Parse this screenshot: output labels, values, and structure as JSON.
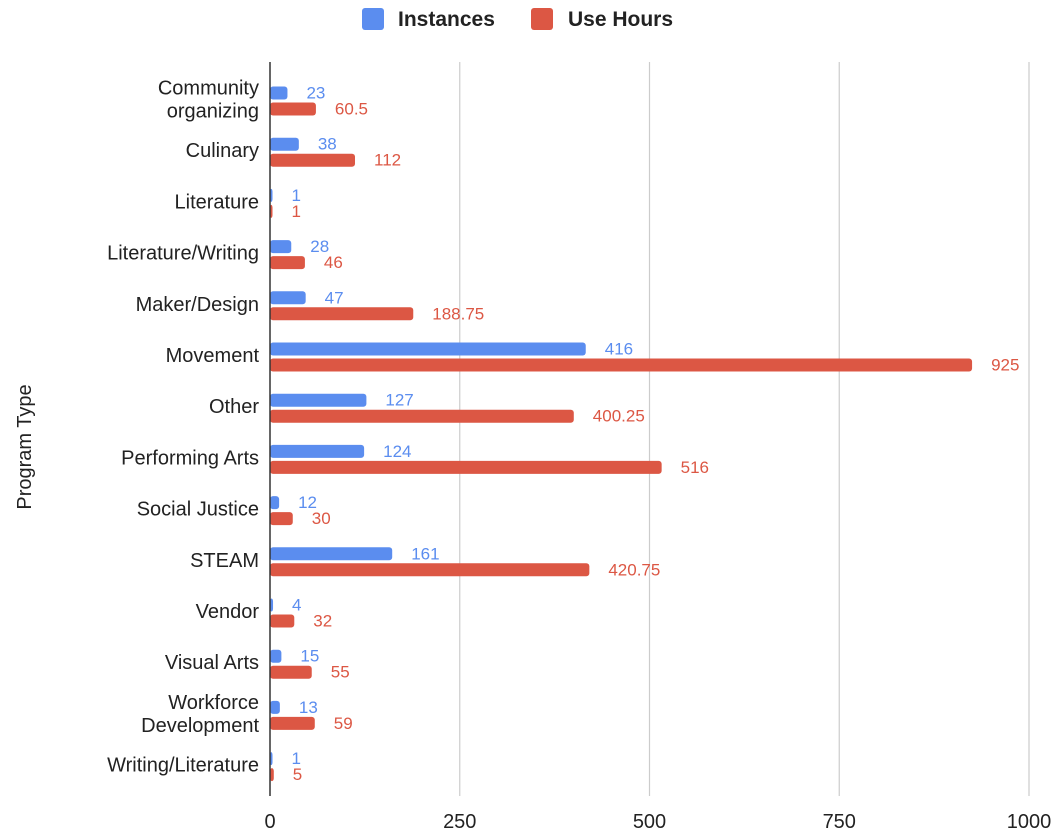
{
  "chart_data": {
    "type": "bar",
    "orientation": "horizontal",
    "title": "",
    "xlabel": "",
    "ylabel": "Program Type",
    "categories": [
      [
        "Community",
        "organizing"
      ],
      [
        "Culinary"
      ],
      [
        "Literature"
      ],
      [
        "Literature/Writing"
      ],
      [
        "Maker/Design"
      ],
      [
        "Movement"
      ],
      [
        "Other"
      ],
      [
        "Performing Arts"
      ],
      [
        "Social Justice"
      ],
      [
        "STEAM"
      ],
      [
        "Vendor"
      ],
      [
        "Visual Arts"
      ],
      [
        "Workforce",
        "Development"
      ],
      [
        "Writing/Literature"
      ]
    ],
    "series": [
      {
        "name": "Instances",
        "color": "#5b8def",
        "values": [
          23,
          38,
          1,
          28,
          47,
          416,
          127,
          124,
          12,
          161,
          4,
          15,
          13,
          1
        ],
        "labels": [
          "23",
          "38",
          "1",
          "28",
          "47",
          "416",
          "127",
          "124",
          "12",
          "161",
          "4",
          "15",
          "13",
          "1"
        ]
      },
      {
        "name": "Use Hours",
        "color": "#dc5744",
        "values": [
          60.5,
          112,
          1,
          46,
          188.75,
          925,
          400.25,
          516,
          30,
          420.75,
          32,
          55,
          59,
          5
        ],
        "labels": [
          "60.5",
          "112",
          "1",
          "46",
          "188.75",
          "925",
          "400.25",
          "516",
          "30",
          "420.75",
          "32",
          "55",
          "59",
          "5"
        ]
      }
    ],
    "xlim": [
      0,
      1000
    ],
    "ticks": [
      0,
      250,
      500,
      750,
      1000
    ],
    "tick_labels": [
      "0",
      "250",
      "500",
      "750",
      "1000"
    ],
    "grid": true,
    "legend_position": "top-center"
  }
}
